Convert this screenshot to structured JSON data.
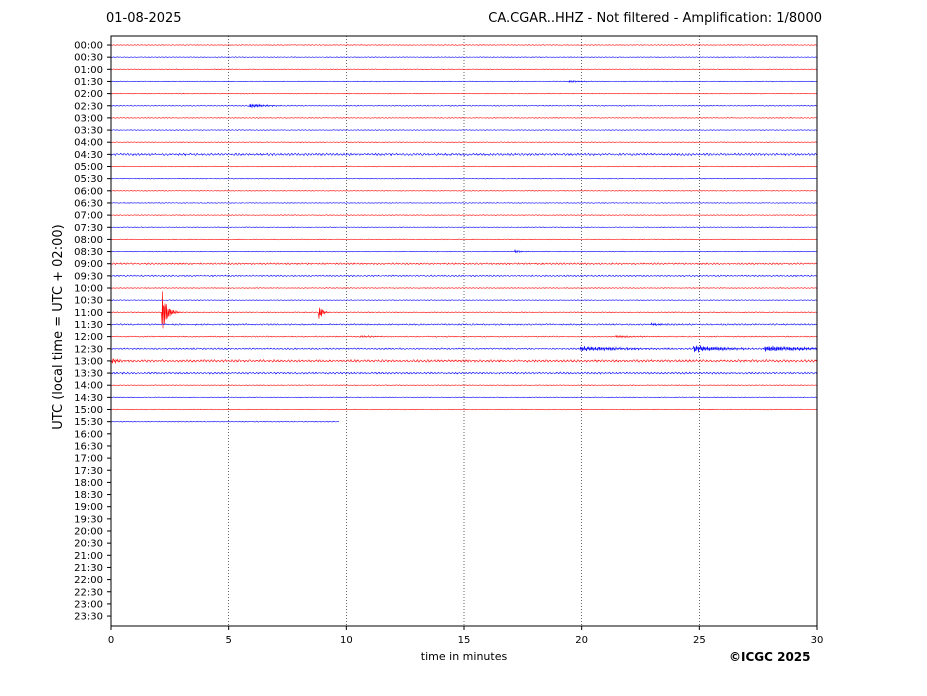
{
  "header": {
    "date": "01-08-2025",
    "title": "CA.CGAR..HHZ - Not filtered - Amplification: 1/8000"
  },
  "footer": {
    "copyright": "©ICGC 2025"
  },
  "chart_data": {
    "type": "line",
    "title": "CA.CGAR..HHZ - Not filtered - Amplification: 1/8000",
    "xlabel": "time in minutes",
    "ylabel": "UTC (local time = UTC + 02:00)",
    "xlim": [
      0,
      30
    ],
    "xticks": [
      "0",
      "5",
      "10",
      "15",
      "20",
      "25",
      "30"
    ],
    "vertical_gridlines_at": [
      5,
      10,
      15,
      20,
      25
    ],
    "grid": "vertical dotted",
    "row_labels": [
      "00:00",
      "00:30",
      "01:00",
      "01:30",
      "02:00",
      "02:30",
      "03:00",
      "03:30",
      "04:00",
      "04:30",
      "05:00",
      "05:30",
      "06:00",
      "06:30",
      "07:00",
      "07:30",
      "08:00",
      "08:30",
      "09:00",
      "09:30",
      "10:00",
      "10:30",
      "11:00",
      "11:30",
      "12:00",
      "12:30",
      "13:00",
      "13:30",
      "14:00",
      "14:30",
      "15:00",
      "15:30",
      "16:00",
      "16:30",
      "17:00",
      "17:30",
      "18:00",
      "18:30",
      "19:00",
      "19:30",
      "20:00",
      "20:30",
      "21:00",
      "21:30",
      "22:00",
      "22:30",
      "23:00",
      "23:30"
    ],
    "colors": {
      "trace_a": "#ff0000",
      "trace_b": "#0000ff",
      "gridline": "#000000"
    },
    "traces": [
      {
        "row": "00:00",
        "color": "red",
        "end_min": 30,
        "noise": 0.4,
        "events": []
      },
      {
        "row": "00:30",
        "color": "blue",
        "end_min": 30,
        "noise": 0.4,
        "events": []
      },
      {
        "row": "01:00",
        "color": "red",
        "end_min": 30,
        "noise": 0.4,
        "events": []
      },
      {
        "row": "01:30",
        "color": "blue",
        "end_min": 30,
        "noise": 0.4,
        "events": [
          {
            "t": 19.5,
            "amp": 1,
            "dur": 0.8
          }
        ]
      },
      {
        "row": "02:00",
        "color": "red",
        "end_min": 30,
        "noise": 0.4,
        "events": []
      },
      {
        "row": "02:30",
        "color": "blue",
        "end_min": 30,
        "noise": 0.5,
        "events": [
          {
            "t": 5.9,
            "amp": 2,
            "dur": 1
          }
        ]
      },
      {
        "row": "03:00",
        "color": "red",
        "end_min": 30,
        "noise": 0.4,
        "events": []
      },
      {
        "row": "03:30",
        "color": "blue",
        "end_min": 30,
        "noise": 0.4,
        "events": []
      },
      {
        "row": "04:00",
        "color": "red",
        "end_min": 30,
        "noise": 0.4,
        "events": []
      },
      {
        "row": "04:30",
        "color": "blue",
        "end_min": 30,
        "noise": 1.2,
        "events": []
      },
      {
        "row": "05:00",
        "color": "red",
        "end_min": 30,
        "noise": 0.4,
        "events": []
      },
      {
        "row": "05:30",
        "color": "blue",
        "end_min": 30,
        "noise": 0.4,
        "events": []
      },
      {
        "row": "06:00",
        "color": "red",
        "end_min": 30,
        "noise": 0.4,
        "events": []
      },
      {
        "row": "06:30",
        "color": "blue",
        "end_min": 30,
        "noise": 0.4,
        "events": []
      },
      {
        "row": "07:00",
        "color": "red",
        "end_min": 30,
        "noise": 0.4,
        "events": []
      },
      {
        "row": "07:30",
        "color": "blue",
        "end_min": 30,
        "noise": 0.4,
        "events": []
      },
      {
        "row": "08:00",
        "color": "red",
        "end_min": 30,
        "noise": 0.4,
        "events": []
      },
      {
        "row": "08:30",
        "color": "blue",
        "end_min": 30,
        "noise": 0.4,
        "events": [
          {
            "t": 17.2,
            "amp": 1.2,
            "dur": 0.5
          }
        ]
      },
      {
        "row": "09:00",
        "color": "red",
        "end_min": 30,
        "noise": 0.9,
        "events": []
      },
      {
        "row": "09:30",
        "color": "blue",
        "end_min": 30,
        "noise": 0.8,
        "events": []
      },
      {
        "row": "10:00",
        "color": "red",
        "end_min": 30,
        "noise": 0.4,
        "events": []
      },
      {
        "row": "10:30",
        "color": "blue",
        "end_min": 30,
        "noise": 0.4,
        "events": []
      },
      {
        "row": "11:00",
        "color": "red",
        "end_min": 30,
        "noise": 0.5,
        "events": [
          {
            "t": 2.2,
            "amp": 22,
            "dur": 0.3
          },
          {
            "t": 8.85,
            "amp": 8,
            "dur": 0.2
          }
        ]
      },
      {
        "row": "11:30",
        "color": "blue",
        "end_min": 30,
        "noise": 0.8,
        "events": [
          {
            "t": 23,
            "amp": 1,
            "dur": 1.5
          }
        ]
      },
      {
        "row": "12:00",
        "color": "red",
        "end_min": 30,
        "noise": 0.6,
        "events": [
          {
            "t": 10.6,
            "amp": 1,
            "dur": 1
          },
          {
            "t": 21.5,
            "amp": 1,
            "dur": 1.2
          }
        ]
      },
      {
        "row": "12:30",
        "color": "blue",
        "end_min": 30,
        "noise": 0.8,
        "events": [
          {
            "t": 20,
            "amp": 2.5,
            "dur": 3
          },
          {
            "t": 24.8,
            "amp": 3.5,
            "dur": 2
          },
          {
            "t": 27.8,
            "amp": 3,
            "dur": 3
          }
        ]
      },
      {
        "row": "13:00",
        "color": "red",
        "end_min": 30,
        "noise": 1.3,
        "events": [
          {
            "t": 0.1,
            "amp": 2.5,
            "dur": 0.5
          }
        ]
      },
      {
        "row": "13:30",
        "color": "blue",
        "end_min": 30,
        "noise": 1,
        "events": []
      },
      {
        "row": "14:00",
        "color": "red",
        "end_min": 30,
        "noise": 0.4,
        "events": []
      },
      {
        "row": "14:30",
        "color": "blue",
        "end_min": 30,
        "noise": 0.4,
        "events": []
      },
      {
        "row": "15:00",
        "color": "red",
        "end_min": 30,
        "noise": 0.4,
        "events": []
      },
      {
        "row": "15:30",
        "color": "blue",
        "end_min": 9.7,
        "noise": 0.5,
        "events": []
      }
    ]
  }
}
